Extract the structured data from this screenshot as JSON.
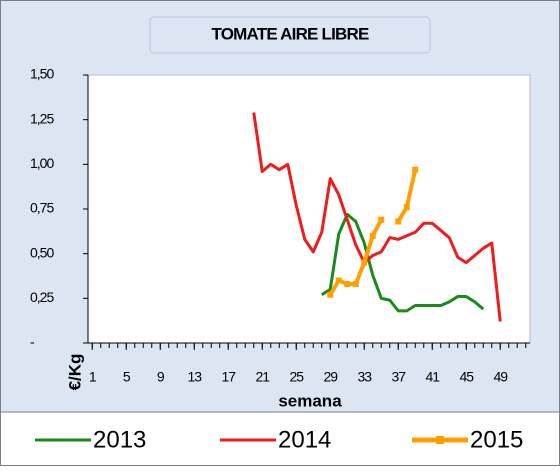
{
  "chart_data": {
    "type": "line",
    "title": "TOMATE AIRE LIBRE",
    "y_label": "€/Kg",
    "x_label": "semana",
    "xlim": [
      0.5,
      52.5
    ],
    "xticks": [
      1,
      5,
      9,
      13,
      17,
      21,
      25,
      29,
      33,
      37,
      41,
      45,
      49
    ],
    "ylim": [
      0,
      1.5
    ],
    "yticks": [
      {
        "value": 0,
        "label": "-"
      },
      {
        "value": 0.25,
        "label": "0,25"
      },
      {
        "value": 0.5,
        "label": "0,50"
      },
      {
        "value": 0.75,
        "label": "0,75"
      },
      {
        "value": 1,
        "label": "1,00"
      },
      {
        "value": 1.25,
        "label": "1,25"
      },
      {
        "value": 1.5,
        "label": "1,50"
      }
    ],
    "grid": false,
    "legend": "bottom",
    "series": [
      {
        "name": "2013",
        "color": "#1a8a1a",
        "x": [
          28,
          29,
          30,
          31,
          32,
          33,
          34,
          35,
          36,
          37,
          38,
          39,
          40,
          41,
          42,
          43,
          44,
          45,
          46,
          47
        ],
        "values": [
          0.27,
          0.3,
          0.61,
          0.72,
          0.68,
          0.56,
          0.38,
          0.25,
          0.24,
          0.18,
          0.18,
          0.21,
          0.21,
          0.21,
          0.21,
          0.23,
          0.26,
          0.26,
          0.23,
          0.19
        ]
      },
      {
        "name": "2014",
        "color": "#ee1c1c",
        "x": [
          20,
          21,
          22,
          23,
          24,
          25,
          26,
          27,
          28,
          29,
          30,
          31,
          32,
          33,
          34,
          35,
          36,
          37,
          38,
          39,
          40,
          41,
          42,
          43,
          44,
          45,
          46,
          47,
          48,
          49
        ],
        "values": [
          1.29,
          0.96,
          1.0,
          0.97,
          1.0,
          0.77,
          0.58,
          0.51,
          0.62,
          0.92,
          0.83,
          0.69,
          0.55,
          0.45,
          0.49,
          0.51,
          0.59,
          0.58,
          0.6,
          0.62,
          0.67,
          0.67,
          0.63,
          0.59,
          0.48,
          0.45,
          0.49,
          0.53,
          0.56,
          0.12
        ]
      },
      {
        "name": "2015",
        "color": "#ffa000",
        "marker": "square",
        "x": [
          29,
          30,
          31,
          32,
          33,
          34,
          35,
          36,
          37,
          38,
          39
        ],
        "values": [
          0.27,
          0.35,
          0.33,
          0.33,
          0.45,
          0.6,
          0.69,
          null,
          0.68,
          0.76,
          0.97
        ]
      }
    ]
  }
}
